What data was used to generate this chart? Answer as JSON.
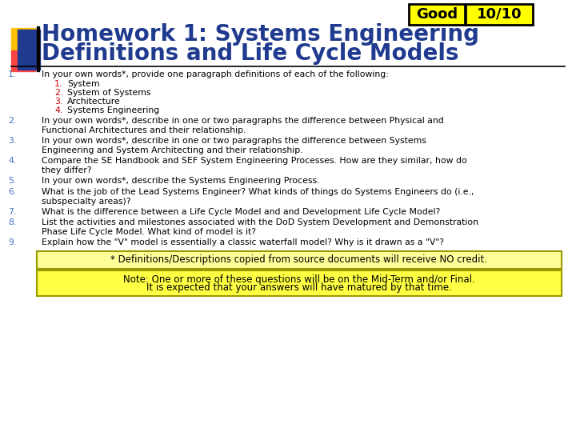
{
  "title_line1": "Homework 1: Systems Engineering",
  "title_line2": "Definitions and Life Cycle Models",
  "title_color": "#1F3A8F",
  "bg_color": "#FFFFFF",
  "good_label": "Good",
  "score_label": "10/10",
  "good_bg": "#FFFF00",
  "score_bg": "#FFFF00",
  "items": [
    {
      "num": "1.",
      "text": "In your own words*, provide one paragraph definitions of each of the following:",
      "subitems": [
        "System",
        "System of Systems",
        "Architecture",
        "Systems Engineering"
      ]
    },
    {
      "num": "2.",
      "text": "In your own words*, describe in one or two paragraphs the difference between Physical and\nFunctional Architectures and their relationship.",
      "subitems": []
    },
    {
      "num": "3.",
      "text": "In your own words*, describe in one or two paragraphs the difference between Systems\nEngineering and System Architecting and their relationship.",
      "subitems": []
    },
    {
      "num": "4.",
      "text": "Compare the SE Handbook and SEF System Engineering Processes. How are they similar, how do\nthey differ?",
      "subitems": []
    },
    {
      "num": "5.",
      "text": "In your own words*, describe the Systems Engineering Process.",
      "subitems": []
    },
    {
      "num": "6.",
      "text": "What is the job of the Lead Systems Engineer? What kinds of things do Systems Engineers do (i.e.,\nsubspecialty areas)?",
      "subitems": []
    },
    {
      "num": "7.",
      "text": "What is the difference between a Life Cycle Model and and Development Life Cycle Model?",
      "subitems": []
    },
    {
      "num": "8.",
      "text": "List the activities and milestones associated with the DoD System Development and Demonstration\nPhase Life Cycle Model. What kind of model is it?",
      "subitems": []
    },
    {
      "num": "9.",
      "text": "Explain how the \"V\" model is essentially a classic waterfall model? Why is it drawn as a \"V\"?",
      "subitems": []
    }
  ],
  "note1": "* Definitions/Descriptions copied from source documents will receive NO credit.",
  "note2_line1": "Note: One or more of these questions will be on the Mid-Term and/or Final.",
  "note2_line2": "It is expected that your answers will have matured by that time.",
  "num_color": "#4472C4",
  "subnum_color": "#CC0000",
  "text_color": "#000000",
  "item_fontsize": 7.8,
  "sub_fontsize": 7.8,
  "note_fontsize": 8.5,
  "title_fontsize": 20,
  "badge_fontsize": 13
}
